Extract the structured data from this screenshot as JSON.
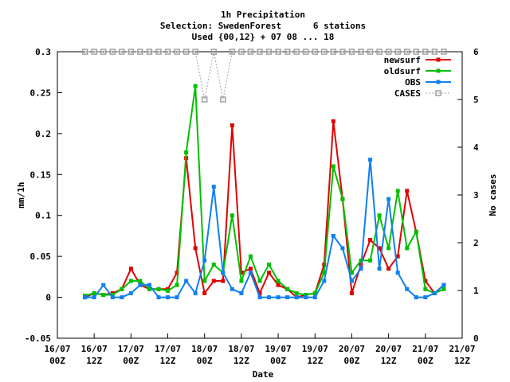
{
  "chart_data": {
    "type": "line",
    "title": "1h Precipitation",
    "subtitle": "Selection: SwedenForest      6 stations",
    "subtitle2": "Used {00,12} + 07 08 ... 18",
    "x_label": "Date",
    "y_label": "mm/1h",
    "y2_label": "No cases",
    "x": [
      "16/07 09Z",
      "16/07 12Z",
      "16/07 15Z",
      "16/07 18Z",
      "16/07 21Z",
      "17/07 00Z",
      "17/07 03Z",
      "17/07 06Z",
      "17/07 09Z",
      "17/07 12Z",
      "17/07 15Z",
      "17/07 18Z",
      "17/07 21Z",
      "18/07 00Z",
      "18/07 03Z",
      "18/07 06Z",
      "18/07 09Z",
      "18/07 12Z",
      "18/07 15Z",
      "18/07 18Z",
      "18/07 21Z",
      "19/07 00Z",
      "19/07 03Z",
      "19/07 06Z",
      "19/07 09Z",
      "19/07 12Z",
      "19/07 15Z",
      "19/07 18Z",
      "19/07 21Z",
      "20/07 00Z",
      "20/07 03Z",
      "20/07 06Z",
      "20/07 09Z",
      "20/07 12Z",
      "20/07 15Z",
      "20/07 18Z",
      "20/07 21Z",
      "21/07 00Z",
      "21/07 03Z",
      "21/07 06Z"
    ],
    "series": [
      {
        "name": "newsurf",
        "color": "#e00000",
        "values": [
          0,
          0.005,
          0.003,
          0.005,
          0.01,
          0.035,
          0.015,
          0.01,
          0.01,
          0.01,
          0.03,
          0.17,
          0.06,
          0.005,
          0.02,
          0.02,
          0.21,
          0.03,
          0.035,
          0.005,
          0.03,
          0.015,
          0.01,
          0,
          0.003,
          0.005,
          0.04,
          0.215,
          0.12,
          0.005,
          0.04,
          0.07,
          0.06,
          0.035,
          0.05,
          0.13,
          0.08,
          0.02,
          0.005,
          0.015
        ]
      },
      {
        "name": "oldsurf",
        "color": "#00c000",
        "values": [
          0.002,
          0.005,
          0.003,
          0.003,
          0.01,
          0.02,
          0.02,
          0.01,
          0.01,
          0.008,
          0.015,
          0.177,
          0.258,
          0.02,
          0.04,
          0.03,
          0.1,
          0.02,
          0.05,
          0.02,
          0.04,
          0.02,
          0.01,
          0.005,
          0.003,
          0.005,
          0.03,
          0.16,
          0.12,
          0.03,
          0.045,
          0.045,
          0.1,
          0.06,
          0.13,
          0.06,
          0.08,
          0.01,
          0.005,
          0.01
        ]
      },
      {
        "name": "OBS",
        "color": "#1080f0",
        "values": [
          0,
          0,
          0.015,
          0,
          0,
          0.005,
          0.015,
          0.015,
          0,
          0,
          0,
          0.02,
          0.005,
          0.045,
          0.135,
          0.03,
          0.01,
          0.005,
          0.03,
          0,
          0,
          0,
          0,
          0,
          0,
          0,
          0.02,
          0.075,
          0.06,
          0.02,
          0.035,
          0.168,
          0.035,
          0.12,
          0.03,
          0.01,
          0,
          0,
          0.005,
          0.015
        ]
      },
      {
        "name": "CASES",
        "color": "#a0a0a0",
        "axis": "y2",
        "values": [
          6,
          6,
          6,
          6,
          6,
          6,
          6,
          6,
          6,
          6,
          6,
          6,
          6,
          5,
          6,
          5,
          6,
          6,
          6,
          6,
          6,
          6,
          6,
          6,
          6,
          6,
          6,
          6,
          6,
          6,
          6,
          6,
          6,
          6,
          6,
          6,
          6,
          6,
          6,
          6
        ]
      }
    ],
    "xticks": [
      "16/07\n00Z",
      "16/07\n12Z",
      "17/07\n00Z",
      "17/07\n12Z",
      "18/07\n00Z",
      "18/07\n12Z",
      "19/07\n00Z",
      "19/07\n12Z",
      "20/07\n00Z",
      "20/07\n12Z",
      "21/07\n00Z",
      "21/07\n12Z"
    ],
    "ylim": [
      -0.05,
      0.3
    ],
    "yticks": [
      -0.05,
      0,
      0.05,
      0.1,
      0.15,
      0.2,
      0.25,
      0.3
    ],
    "y2lim": [
      0,
      6
    ],
    "y2ticks": [
      0,
      1,
      2,
      3,
      4,
      5,
      6
    ],
    "legend": "top-right"
  }
}
